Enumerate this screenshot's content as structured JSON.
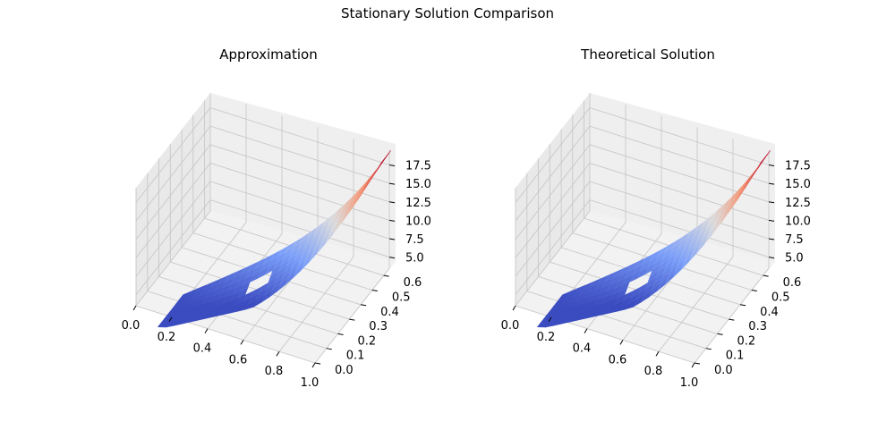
{
  "figure": {
    "title": "Stationary Solution Comparison"
  },
  "chart_data": [
    {
      "type": "surface",
      "title": "Approximation",
      "xlabel": "",
      "ylabel": "",
      "zlabel": "",
      "xlim": [
        0.0,
        1.0
      ],
      "ylim": [
        0.0,
        0.65
      ],
      "zlim": [
        3.5,
        19.5
      ],
      "x_ticks": [
        "0.0",
        "0.2",
        "0.4",
        "0.6",
        "0.8",
        "1.0"
      ],
      "y_ticks": [
        "0.0",
        "0.1",
        "0.2",
        "0.3",
        "0.4",
        "0.5",
        "0.6"
      ],
      "z_ticks": [
        "5.0",
        "7.5",
        "10.0",
        "12.5",
        "15.0",
        "17.5"
      ],
      "colormap": "coolwarm",
      "z_range": [
        3.8,
        19.2
      ],
      "grid": true
    },
    {
      "type": "surface",
      "title": "Theoretical Solution",
      "xlabel": "",
      "ylabel": "",
      "zlabel": "",
      "xlim": [
        0.0,
        1.0
      ],
      "ylim": [
        0.0,
        0.65
      ],
      "zlim": [
        3.5,
        19.5
      ],
      "x_ticks": [
        "0.0",
        "0.2",
        "0.4",
        "0.6",
        "0.8",
        "1.0"
      ],
      "y_ticks": [
        "0.0",
        "0.1",
        "0.2",
        "0.3",
        "0.4",
        "0.5",
        "0.6"
      ],
      "z_ticks": [
        "5.0",
        "7.5",
        "10.0",
        "12.5",
        "15.0",
        "17.5"
      ],
      "colormap": "coolwarm",
      "z_range": [
        3.8,
        19.2
      ],
      "grid": true
    }
  ]
}
